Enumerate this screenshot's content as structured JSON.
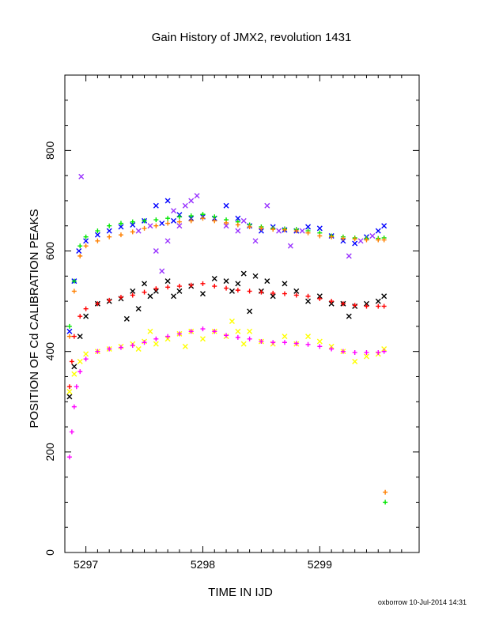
{
  "chart_data": {
    "type": "scatter",
    "title": "Gain History of JMX2, revolution 1431",
    "xlabel": "TIME IN IJD",
    "ylabel": "POSITION OF Cd CALIBRATION PEAKS",
    "xlim": [
      5296.82,
      5299.85
    ],
    "ylim": [
      0,
      950
    ],
    "x_ticks": [
      "5297",
      "5298",
      "5299"
    ],
    "y_ticks": [
      "0",
      "200",
      "400",
      "600",
      "800"
    ],
    "grid": false,
    "legend": "none",
    "series": [
      {
        "color": "#0000ff",
        "marker": "x",
        "points": [
          [
            5296.86,
            440
          ],
          [
            5296.9,
            540
          ],
          [
            5296.94,
            600
          ],
          [
            5297.0,
            620
          ],
          [
            5297.1,
            632
          ],
          [
            5297.2,
            640
          ],
          [
            5297.3,
            648
          ],
          [
            5297.4,
            652
          ],
          [
            5297.5,
            660
          ],
          [
            5297.6,
            690
          ],
          [
            5297.65,
            655
          ],
          [
            5297.7,
            700
          ],
          [
            5297.75,
            660
          ],
          [
            5297.8,
            672
          ],
          [
            5297.9,
            665
          ],
          [
            5298.0,
            668
          ],
          [
            5298.1,
            665
          ],
          [
            5298.2,
            690
          ],
          [
            5298.3,
            665
          ],
          [
            5298.4,
            650
          ],
          [
            5298.5,
            640
          ],
          [
            5298.6,
            648
          ],
          [
            5298.7,
            642
          ],
          [
            5298.8,
            640
          ],
          [
            5298.9,
            648
          ],
          [
            5299.0,
            645
          ],
          [
            5299.1,
            630
          ],
          [
            5299.2,
            620
          ],
          [
            5299.3,
            615
          ],
          [
            5299.4,
            628
          ],
          [
            5299.5,
            640
          ],
          [
            5299.55,
            650
          ]
        ]
      },
      {
        "color": "#9933ff",
        "marker": "x",
        "points": [
          [
            5296.96,
            748
          ],
          [
            5297.45,
            640
          ],
          [
            5297.55,
            650
          ],
          [
            5297.6,
            600
          ],
          [
            5297.65,
            560
          ],
          [
            5297.7,
            620
          ],
          [
            5297.75,
            680
          ],
          [
            5297.8,
            650
          ],
          [
            5297.85,
            690
          ],
          [
            5297.9,
            700
          ],
          [
            5297.95,
            710
          ],
          [
            5298.2,
            650
          ],
          [
            5298.3,
            640
          ],
          [
            5298.35,
            660
          ],
          [
            5298.45,
            620
          ],
          [
            5298.55,
            690
          ],
          [
            5298.65,
            640
          ],
          [
            5298.75,
            610
          ],
          [
            5298.85,
            640
          ],
          [
            5299.25,
            590
          ],
          [
            5299.35,
            620
          ],
          [
            5299.45,
            630
          ]
        ]
      },
      {
        "color": "#00e600",
        "marker": "+",
        "points": [
          [
            5296.86,
            450
          ],
          [
            5296.9,
            540
          ],
          [
            5296.95,
            610
          ],
          [
            5297.0,
            628
          ],
          [
            5297.1,
            640
          ],
          [
            5297.2,
            650
          ],
          [
            5297.3,
            655
          ],
          [
            5297.4,
            658
          ],
          [
            5297.5,
            660
          ],
          [
            5297.6,
            662
          ],
          [
            5297.7,
            665
          ],
          [
            5297.8,
            668
          ],
          [
            5297.9,
            670
          ],
          [
            5298.0,
            673
          ],
          [
            5298.1,
            668
          ],
          [
            5298.2,
            662
          ],
          [
            5298.3,
            658
          ],
          [
            5298.4,
            652
          ],
          [
            5298.5,
            648
          ],
          [
            5298.6,
            645
          ],
          [
            5298.7,
            644
          ],
          [
            5298.8,
            643
          ],
          [
            5298.9,
            640
          ],
          [
            5299.0,
            636
          ],
          [
            5299.1,
            630
          ],
          [
            5299.2,
            628
          ],
          [
            5299.3,
            626
          ],
          [
            5299.4,
            625
          ],
          [
            5299.5,
            625
          ],
          [
            5299.55,
            626
          ],
          [
            5299.56,
            100
          ]
        ]
      },
      {
        "color": "#ff8000",
        "marker": "+",
        "points": [
          [
            5296.86,
            430
          ],
          [
            5296.9,
            520
          ],
          [
            5296.95,
            590
          ],
          [
            5297.0,
            610
          ],
          [
            5297.1,
            620
          ],
          [
            5297.2,
            628
          ],
          [
            5297.3,
            632
          ],
          [
            5297.4,
            638
          ],
          [
            5297.5,
            645
          ],
          [
            5297.6,
            650
          ],
          [
            5297.7,
            655
          ],
          [
            5297.8,
            658
          ],
          [
            5297.9,
            660
          ],
          [
            5298.0,
            665
          ],
          [
            5298.1,
            660
          ],
          [
            5298.2,
            656
          ],
          [
            5298.3,
            652
          ],
          [
            5298.4,
            648
          ],
          [
            5298.5,
            645
          ],
          [
            5298.6,
            643
          ],
          [
            5298.7,
            642
          ],
          [
            5298.8,
            640
          ],
          [
            5298.9,
            636
          ],
          [
            5299.0,
            630
          ],
          [
            5299.1,
            628
          ],
          [
            5299.2,
            625
          ],
          [
            5299.3,
            624
          ],
          [
            5299.4,
            622
          ],
          [
            5299.5,
            622
          ],
          [
            5299.55,
            622
          ],
          [
            5299.56,
            120
          ]
        ]
      },
      {
        "color": "#000000",
        "marker": "x",
        "points": [
          [
            5296.86,
            310
          ],
          [
            5296.9,
            370
          ],
          [
            5296.95,
            430
          ],
          [
            5297.0,
            470
          ],
          [
            5297.1,
            495
          ],
          [
            5297.2,
            500
          ],
          [
            5297.3,
            505
          ],
          [
            5297.35,
            465
          ],
          [
            5297.4,
            520
          ],
          [
            5297.45,
            485
          ],
          [
            5297.5,
            535
          ],
          [
            5297.55,
            510
          ],
          [
            5297.6,
            520
          ],
          [
            5297.7,
            540
          ],
          [
            5297.75,
            510
          ],
          [
            5297.8,
            520
          ],
          [
            5297.9,
            530
          ],
          [
            5298.0,
            515
          ],
          [
            5298.1,
            545
          ],
          [
            5298.2,
            540
          ],
          [
            5298.25,
            520
          ],
          [
            5298.3,
            535
          ],
          [
            5298.35,
            555
          ],
          [
            5298.4,
            480
          ],
          [
            5298.45,
            550
          ],
          [
            5298.5,
            520
          ],
          [
            5298.55,
            540
          ],
          [
            5298.6,
            510
          ],
          [
            5298.7,
            535
          ],
          [
            5298.8,
            520
          ],
          [
            5298.9,
            500
          ],
          [
            5299.0,
            510
          ],
          [
            5299.1,
            495
          ],
          [
            5299.2,
            495
          ],
          [
            5299.25,
            470
          ],
          [
            5299.3,
            490
          ],
          [
            5299.4,
            495
          ],
          [
            5299.5,
            500
          ],
          [
            5299.55,
            510
          ]
        ]
      },
      {
        "color": "#ff0000",
        "marker": "+",
        "points": [
          [
            5296.86,
            330
          ],
          [
            5296.88,
            380
          ],
          [
            5296.9,
            430
          ],
          [
            5296.95,
            470
          ],
          [
            5297.0,
            485
          ],
          [
            5297.1,
            495
          ],
          [
            5297.2,
            502
          ],
          [
            5297.3,
            508
          ],
          [
            5297.4,
            512
          ],
          [
            5297.5,
            518
          ],
          [
            5297.6,
            525
          ],
          [
            5297.7,
            528
          ],
          [
            5297.8,
            530
          ],
          [
            5297.9,
            532
          ],
          [
            5298.0,
            535
          ],
          [
            5298.1,
            530
          ],
          [
            5298.2,
            526
          ],
          [
            5298.3,
            522
          ],
          [
            5298.4,
            520
          ],
          [
            5298.5,
            518
          ],
          [
            5298.6,
            516
          ],
          [
            5298.7,
            515
          ],
          [
            5298.8,
            512
          ],
          [
            5298.9,
            510
          ],
          [
            5299.0,
            505
          ],
          [
            5299.1,
            500
          ],
          [
            5299.2,
            495
          ],
          [
            5299.3,
            492
          ],
          [
            5299.4,
            490
          ],
          [
            5299.5,
            490
          ],
          [
            5299.55,
            490
          ]
        ]
      },
      {
        "color": "#ffff00",
        "marker": "x",
        "points": [
          [
            5296.86,
            320
          ],
          [
            5296.9,
            355
          ],
          [
            5296.95,
            380
          ],
          [
            5297.0,
            395
          ],
          [
            5297.1,
            400
          ],
          [
            5297.2,
            405
          ],
          [
            5297.3,
            410
          ],
          [
            5297.4,
            415
          ],
          [
            5297.45,
            405
          ],
          [
            5297.5,
            420
          ],
          [
            5297.55,
            440
          ],
          [
            5297.6,
            415
          ],
          [
            5297.7,
            425
          ],
          [
            5297.8,
            435
          ],
          [
            5297.85,
            410
          ],
          [
            5297.9,
            440
          ],
          [
            5298.0,
            425
          ],
          [
            5298.1,
            440
          ],
          [
            5298.2,
            430
          ],
          [
            5298.25,
            460
          ],
          [
            5298.3,
            440
          ],
          [
            5298.35,
            415
          ],
          [
            5298.4,
            440
          ],
          [
            5298.5,
            420
          ],
          [
            5298.6,
            415
          ],
          [
            5298.7,
            430
          ],
          [
            5298.8,
            415
          ],
          [
            5298.9,
            430
          ],
          [
            5299.0,
            420
          ],
          [
            5299.1,
            410
          ],
          [
            5299.2,
            400
          ],
          [
            5299.3,
            380
          ],
          [
            5299.4,
            390
          ],
          [
            5299.5,
            395
          ],
          [
            5299.55,
            405
          ]
        ]
      },
      {
        "color": "#ff00ff",
        "marker": "+",
        "points": [
          [
            5296.86,
            190
          ],
          [
            5296.88,
            240
          ],
          [
            5296.9,
            290
          ],
          [
            5296.92,
            330
          ],
          [
            5296.95,
            360
          ],
          [
            5297.0,
            385
          ],
          [
            5297.1,
            400
          ],
          [
            5297.2,
            405
          ],
          [
            5297.3,
            408
          ],
          [
            5297.4,
            412
          ],
          [
            5297.5,
            418
          ],
          [
            5297.6,
            425
          ],
          [
            5297.7,
            430
          ],
          [
            5297.8,
            435
          ],
          [
            5297.9,
            440
          ],
          [
            5298.0,
            445
          ],
          [
            5298.1,
            440
          ],
          [
            5298.2,
            432
          ],
          [
            5298.3,
            428
          ],
          [
            5298.4,
            425
          ],
          [
            5298.5,
            420
          ],
          [
            5298.6,
            418
          ],
          [
            5298.7,
            418
          ],
          [
            5298.8,
            416
          ],
          [
            5298.9,
            414
          ],
          [
            5299.0,
            410
          ],
          [
            5299.1,
            405
          ],
          [
            5299.2,
            400
          ],
          [
            5299.3,
            398
          ],
          [
            5299.4,
            398
          ],
          [
            5299.5,
            398
          ],
          [
            5299.55,
            400
          ]
        ]
      }
    ]
  },
  "footer": {
    "credit": "oxborrow 10-Jul-2014 14:31"
  }
}
